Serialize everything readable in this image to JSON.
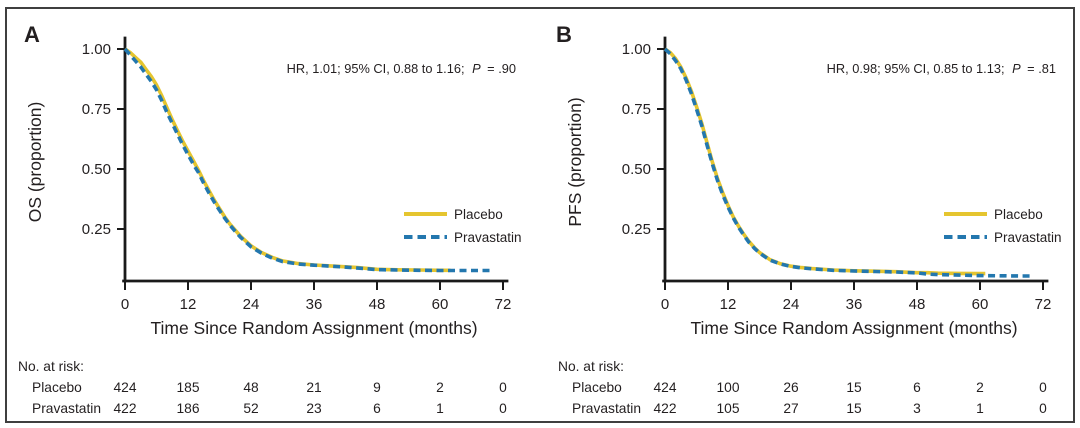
{
  "colors": {
    "placebo": "#E5C52F",
    "pravastatin": "#2377AE",
    "axis": "#1a1a1a",
    "text": "#231F20",
    "border": "#3f3f3f"
  },
  "chart_data": [
    {
      "type": "line",
      "chart_kind": "kaplan-meier",
      "panel_label": "A",
      "ylabel": "OS (proportion)",
      "xlabel": "Time Since Random Assignment (months)",
      "annotation": {
        "prefix": "HR, 1.01; 95% CI, 0.88 to 1.16;",
        "p": "P",
        "suffix": "= .90"
      },
      "xlim": [
        0,
        72
      ],
      "ylim": [
        0,
        1
      ],
      "xticks": [
        0,
        12,
        24,
        36,
        48,
        60,
        72
      ],
      "yticks": [
        1.0,
        0.75,
        0.5,
        0.25
      ],
      "xtick_labels": [
        "0",
        "12",
        "24",
        "36",
        "48",
        "60",
        "72"
      ],
      "ytick_labels": [
        "1.00",
        "0.75",
        "0.50",
        "0.25"
      ],
      "legend_labels": [
        "Placebo",
        "Pravastatin"
      ],
      "legend_position": "lower right",
      "grid": false,
      "series": [
        {
          "name": "Placebo",
          "style": "solid",
          "x": [
            0,
            1,
            2,
            3,
            4,
            5,
            6,
            7,
            8,
            9,
            10,
            11,
            12,
            13,
            14,
            15,
            16,
            17,
            18,
            19,
            20,
            21,
            22,
            24,
            26,
            28,
            30,
            33,
            36,
            40,
            44,
            48,
            52,
            56,
            60,
            62
          ],
          "y": [
            1.0,
            0.985,
            0.965,
            0.945,
            0.915,
            0.885,
            0.85,
            0.805,
            0.755,
            0.705,
            0.66,
            0.615,
            0.575,
            0.535,
            0.495,
            0.45,
            0.41,
            0.37,
            0.335,
            0.3,
            0.27,
            0.245,
            0.22,
            0.18,
            0.152,
            0.132,
            0.117,
            0.106,
            0.1,
            0.095,
            0.09,
            0.082,
            0.08,
            0.079,
            0.078,
            0.078
          ]
        },
        {
          "name": "Pravastatin",
          "style": "dashed",
          "x": [
            0,
            1,
            2,
            3,
            4,
            5,
            6,
            7,
            8,
            9,
            10,
            11,
            12,
            13,
            14,
            15,
            16,
            17,
            18,
            19,
            20,
            21,
            22,
            24,
            26,
            28,
            30,
            33,
            36,
            40,
            44,
            48,
            52,
            56,
            60,
            64,
            68,
            70
          ],
          "y": [
            1.0,
            0.975,
            0.95,
            0.925,
            0.895,
            0.865,
            0.83,
            0.785,
            0.735,
            0.69,
            0.645,
            0.6,
            0.56,
            0.52,
            0.485,
            0.44,
            0.4,
            0.362,
            0.328,
            0.295,
            0.266,
            0.24,
            0.216,
            0.176,
            0.149,
            0.129,
            0.114,
            0.104,
            0.099,
            0.094,
            0.088,
            0.081,
            0.079,
            0.078,
            0.077,
            0.077,
            0.077,
            0.077
          ]
        }
      ],
      "risk_table": {
        "title": "No. at risk:",
        "timepoints": [
          0,
          12,
          24,
          36,
          48,
          60,
          72
        ],
        "rows": [
          {
            "name": "Placebo",
            "counts": [
              "424",
              "185",
              "48",
              "21",
              "9",
              "2",
              "0"
            ]
          },
          {
            "name": "Pravastatin",
            "counts": [
              "422",
              "186",
              "52",
              "23",
              "6",
              "1",
              "0"
            ]
          }
        ]
      }
    },
    {
      "type": "line",
      "chart_kind": "kaplan-meier",
      "panel_label": "B",
      "ylabel": "PFS (proportion)",
      "xlabel": "Time Since Random Assignment (months)",
      "annotation": {
        "prefix": "HR, 0.98; 95% CI, 0.85 to 1.13;",
        "p": "P",
        "suffix": "= .81"
      },
      "xlim": [
        0,
        72
      ],
      "ylim": [
        0,
        1
      ],
      "xticks": [
        0,
        12,
        24,
        36,
        48,
        60,
        72
      ],
      "yticks": [
        1.0,
        0.75,
        0.5,
        0.25
      ],
      "xtick_labels": [
        "0",
        "12",
        "24",
        "36",
        "48",
        "60",
        "72"
      ],
      "ytick_labels": [
        "1.00",
        "0.75",
        "0.50",
        "0.25"
      ],
      "legend_labels": [
        "Placebo",
        "Pravastatin"
      ],
      "legend_position": "lower right",
      "grid": false,
      "series": [
        {
          "name": "Placebo",
          "style": "solid",
          "x": [
            0,
            1,
            2,
            3,
            4,
            5,
            6,
            7,
            8,
            9,
            10,
            11,
            12,
            13,
            14,
            15,
            16,
            17,
            18,
            20,
            22,
            24,
            26,
            28,
            32,
            36,
            40,
            44,
            48,
            50,
            52,
            56,
            60,
            61
          ],
          "y": [
            1.0,
            0.985,
            0.96,
            0.925,
            0.88,
            0.825,
            0.76,
            0.69,
            0.61,
            0.53,
            0.46,
            0.4,
            0.348,
            0.3,
            0.262,
            0.228,
            0.198,
            0.173,
            0.152,
            0.122,
            0.105,
            0.095,
            0.089,
            0.085,
            0.079,
            0.076,
            0.074,
            0.072,
            0.068,
            0.068,
            0.066,
            0.065,
            0.064,
            0.064
          ]
        },
        {
          "name": "Pravastatin",
          "style": "dashed",
          "x": [
            0,
            1,
            2,
            3,
            4,
            5,
            6,
            7,
            8,
            9,
            10,
            11,
            12,
            13,
            14,
            15,
            16,
            17,
            18,
            20,
            22,
            24,
            26,
            28,
            32,
            36,
            40,
            44,
            48,
            50,
            52,
            56,
            60,
            64,
            68,
            70
          ],
          "y": [
            1.0,
            0.98,
            0.952,
            0.918,
            0.872,
            0.815,
            0.75,
            0.68,
            0.6,
            0.522,
            0.452,
            0.392,
            0.342,
            0.296,
            0.258,
            0.224,
            0.194,
            0.17,
            0.15,
            0.12,
            0.104,
            0.094,
            0.088,
            0.084,
            0.078,
            0.075,
            0.073,
            0.071,
            0.067,
            0.062,
            0.06,
            0.058,
            0.056,
            0.055,
            0.054,
            0.054
          ]
        }
      ],
      "risk_table": {
        "title": "No. at risk:",
        "timepoints": [
          0,
          12,
          24,
          36,
          48,
          60,
          72
        ],
        "rows": [
          {
            "name": "Placebo",
            "counts": [
              "424",
              "100",
              "26",
              "15",
              "6",
              "2",
              "0"
            ]
          },
          {
            "name": "Pravastatin",
            "counts": [
              "422",
              "105",
              "27",
              "15",
              "3",
              "1",
              "0"
            ]
          }
        ]
      }
    }
  ]
}
